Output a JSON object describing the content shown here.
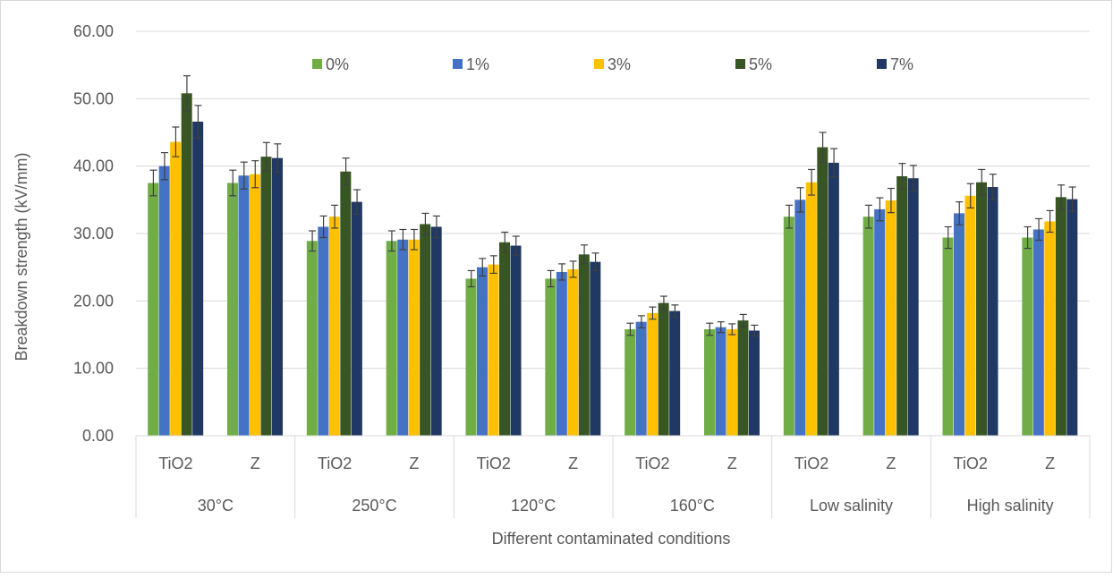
{
  "chart_data": {
    "type": "bar",
    "ylabel": "Breakdown strength (kV/mm)",
    "xlabel": "Different contaminated conditions",
    "ylim": [
      0,
      60
    ],
    "y_ticks": [
      "0.00",
      "10.00",
      "20.00",
      "30.00",
      "40.00",
      "50.00",
      "60.00"
    ],
    "grid": true,
    "legend_position": "top",
    "groups": [
      "30°C",
      "250°C",
      "120°C",
      "160°C",
      "Low salinity",
      "High salinity"
    ],
    "subcategories": [
      "TiO2",
      "Z"
    ],
    "categories": [
      "30°C TiO2",
      "30°C Z",
      "250°C TiO2",
      "250°C Z",
      "120°C TiO2",
      "120°C Z",
      "160°C TiO2",
      "160°C Z",
      "Low salinity TiO2",
      "Low salinity Z",
      "High salinity TiO2",
      "High salinity Z"
    ],
    "series": [
      {
        "name": "0%",
        "color": "#70ad47",
        "values": [
          37.5,
          37.5,
          28.9,
          28.9,
          23.3,
          23.3,
          15.8,
          15.8,
          32.5,
          32.5,
          29.4,
          29.4
        ],
        "errors": [
          1.9,
          1.9,
          1.5,
          1.5,
          1.2,
          1.2,
          0.9,
          0.9,
          1.7,
          1.7,
          1.6,
          1.6
        ]
      },
      {
        "name": "1%",
        "color": "#4472c4",
        "values": [
          40.0,
          38.6,
          31.0,
          29.1,
          25.0,
          24.3,
          16.9,
          16.1,
          35.0,
          33.6,
          33.0,
          30.6
        ],
        "errors": [
          2.0,
          2.0,
          1.6,
          1.5,
          1.3,
          1.2,
          0.9,
          0.8,
          1.8,
          1.7,
          1.7,
          1.6
        ]
      },
      {
        "name": "3%",
        "color": "#ffc000",
        "values": [
          43.6,
          38.8,
          32.5,
          29.1,
          25.4,
          24.7,
          18.2,
          15.8,
          37.6,
          34.9,
          35.6,
          31.8
        ],
        "errors": [
          2.2,
          2.0,
          1.7,
          1.5,
          1.3,
          1.2,
          0.9,
          0.8,
          1.9,
          1.8,
          1.8,
          1.6
        ]
      },
      {
        "name": "5%",
        "color": "#375623",
        "values": [
          50.8,
          41.4,
          39.2,
          31.4,
          28.7,
          26.9,
          19.7,
          17.1,
          42.8,
          38.5,
          37.6,
          35.4
        ],
        "errors": [
          2.6,
          2.1,
          2.0,
          1.6,
          1.5,
          1.4,
          1.0,
          0.9,
          2.2,
          1.9,
          1.9,
          1.8
        ]
      },
      {
        "name": "7%",
        "color": "#203864",
        "values": [
          46.6,
          41.2,
          34.7,
          31.0,
          28.2,
          25.8,
          18.5,
          15.6,
          40.5,
          38.2,
          36.9,
          35.1
        ],
        "errors": [
          2.4,
          2.1,
          1.8,
          1.6,
          1.4,
          1.3,
          0.9,
          0.8,
          2.1,
          1.9,
          1.9,
          1.8
        ]
      }
    ]
  }
}
